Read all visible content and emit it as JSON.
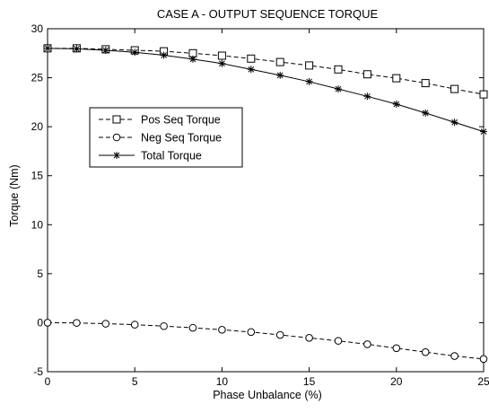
{
  "chart_data": {
    "type": "line",
    "title": "CASE A - OUTPUT SEQUENCE TORQUE",
    "xlabel": "Phase Unbalance (%)",
    "ylabel": "Torque (Nm)",
    "xlim": [
      0,
      25
    ],
    "ylim": [
      -5,
      30
    ],
    "xticks": [
      0,
      5,
      10,
      15,
      20,
      25
    ],
    "yticks": [
      -5,
      0,
      5,
      10,
      15,
      20,
      25,
      30
    ],
    "grid": false,
    "legend_position": "center-left",
    "x": [
      0,
      1.667,
      3.333,
      5,
      6.667,
      8.333,
      10,
      11.667,
      13.333,
      15,
      16.667,
      18.333,
      20,
      21.667,
      23.333,
      25
    ],
    "series": [
      {
        "name": "Pos Seq Torque",
        "marker": "square",
        "line_style": "dashed",
        "color": "#000000",
        "values": [
          28.0,
          28.0,
          27.9,
          27.8,
          27.7,
          27.5,
          27.25,
          26.95,
          26.6,
          26.25,
          25.85,
          25.35,
          24.95,
          24.45,
          23.85,
          23.3
        ]
      },
      {
        "name": "Neg Seq Torque",
        "marker": "circle",
        "line_style": "dashed",
        "color": "#000000",
        "values": [
          0.0,
          -0.02,
          -0.1,
          -0.2,
          -0.35,
          -0.52,
          -0.72,
          -0.95,
          -1.25,
          -1.55,
          -1.85,
          -2.2,
          -2.6,
          -3.0,
          -3.4,
          -3.7
        ]
      },
      {
        "name": "Total Torque",
        "marker": "star",
        "line_style": "solid",
        "color": "#000000",
        "values": [
          28.0,
          27.95,
          27.8,
          27.6,
          27.3,
          26.9,
          26.45,
          25.85,
          25.25,
          24.6,
          23.85,
          23.1,
          22.3,
          21.4,
          20.45,
          19.5
        ]
      }
    ]
  }
}
